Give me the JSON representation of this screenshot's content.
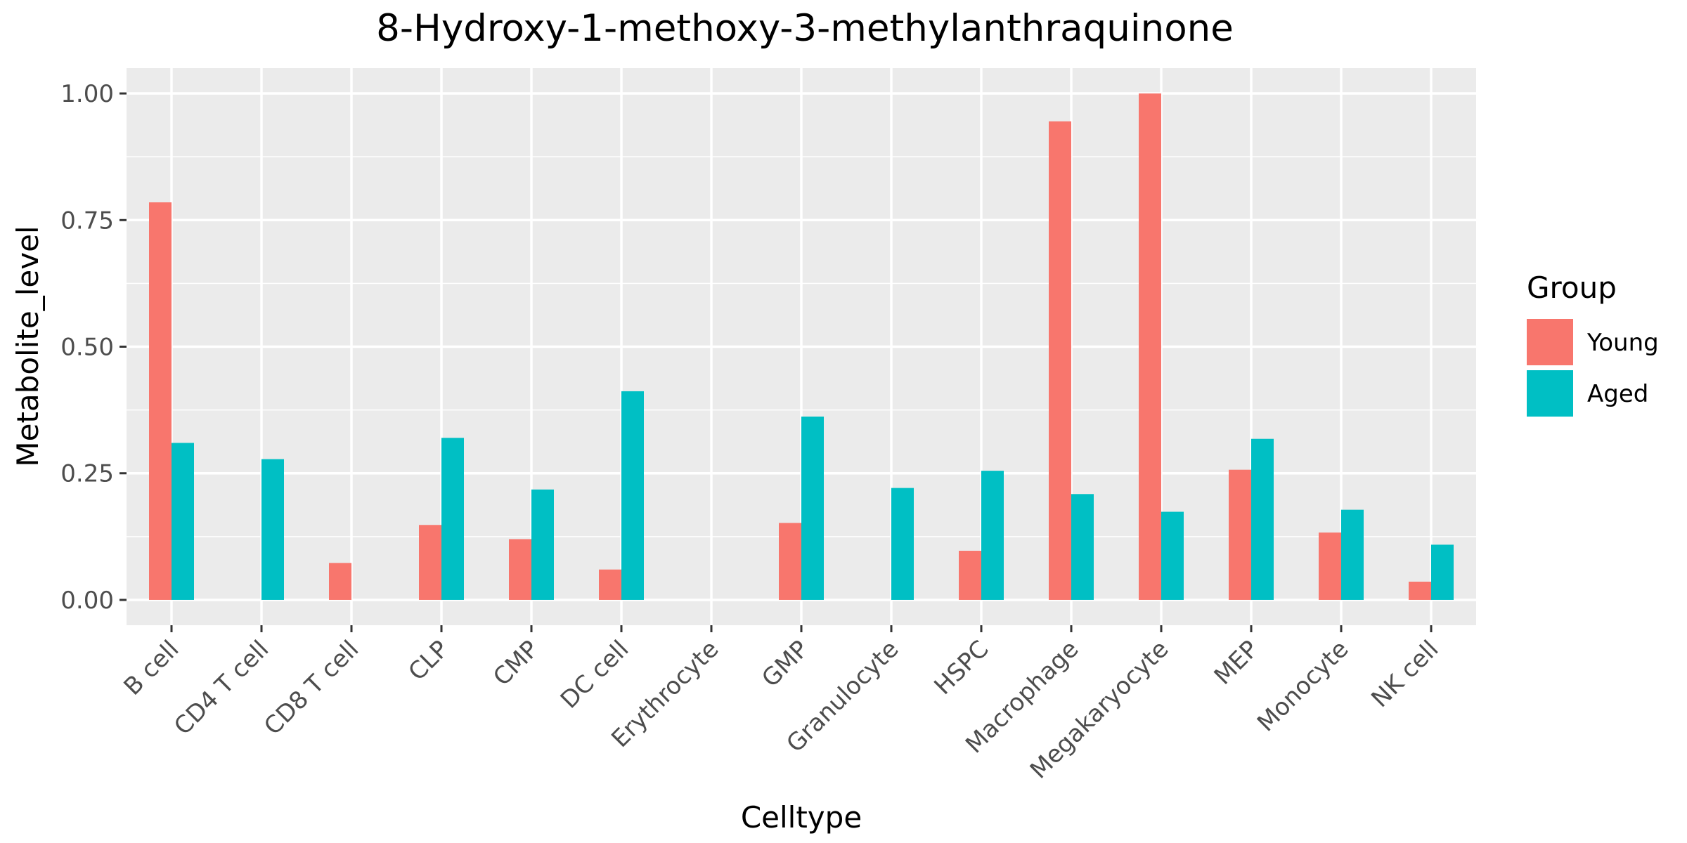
{
  "chart_data": {
    "type": "bar",
    "title": "8-Hydroxy-1-methoxy-3-methylanthraquinone",
    "xlabel": "Celltype",
    "ylabel": "Metabolite_level",
    "ylim": [
      -0.05,
      1.05
    ],
    "yticks": [
      0.0,
      0.25,
      0.5,
      0.75,
      1.0
    ],
    "ytick_labels": [
      "0.00",
      "0.25",
      "0.50",
      "0.75",
      "1.00"
    ],
    "grid": true,
    "legend_position": "right",
    "legend_title": "Group",
    "categories": [
      "B cell",
      "CD4 T cell",
      "CD8 T cell",
      "CLP",
      "CMP",
      "DC cell",
      "Erythrocyte",
      "GMP",
      "Granulocyte",
      "HSPC",
      "Macrophage",
      "Megakaryocyte",
      "MEP",
      "Monocyte",
      "NK cell"
    ],
    "series": [
      {
        "name": "Young",
        "color": "#F8766D",
        "values": [
          0.785,
          0,
          0.073,
          0.148,
          0.12,
          0.06,
          0,
          0.152,
          0,
          0.097,
          0.945,
          1.0,
          0.257,
          0.133,
          0.036
        ]
      },
      {
        "name": "Aged",
        "color": "#00BFC4",
        "values": [
          0.31,
          0.278,
          0,
          0.32,
          0.218,
          0.412,
          0,
          0.362,
          0.221,
          0.255,
          0.209,
          0.174,
          0.318,
          0.178,
          0.109
        ]
      }
    ]
  },
  "colors": {
    "panel_background": "#EBEBEB",
    "grid_major": "#FFFFFF",
    "tick_label": "#4D4D4D",
    "tick_mark": "#333333"
  }
}
